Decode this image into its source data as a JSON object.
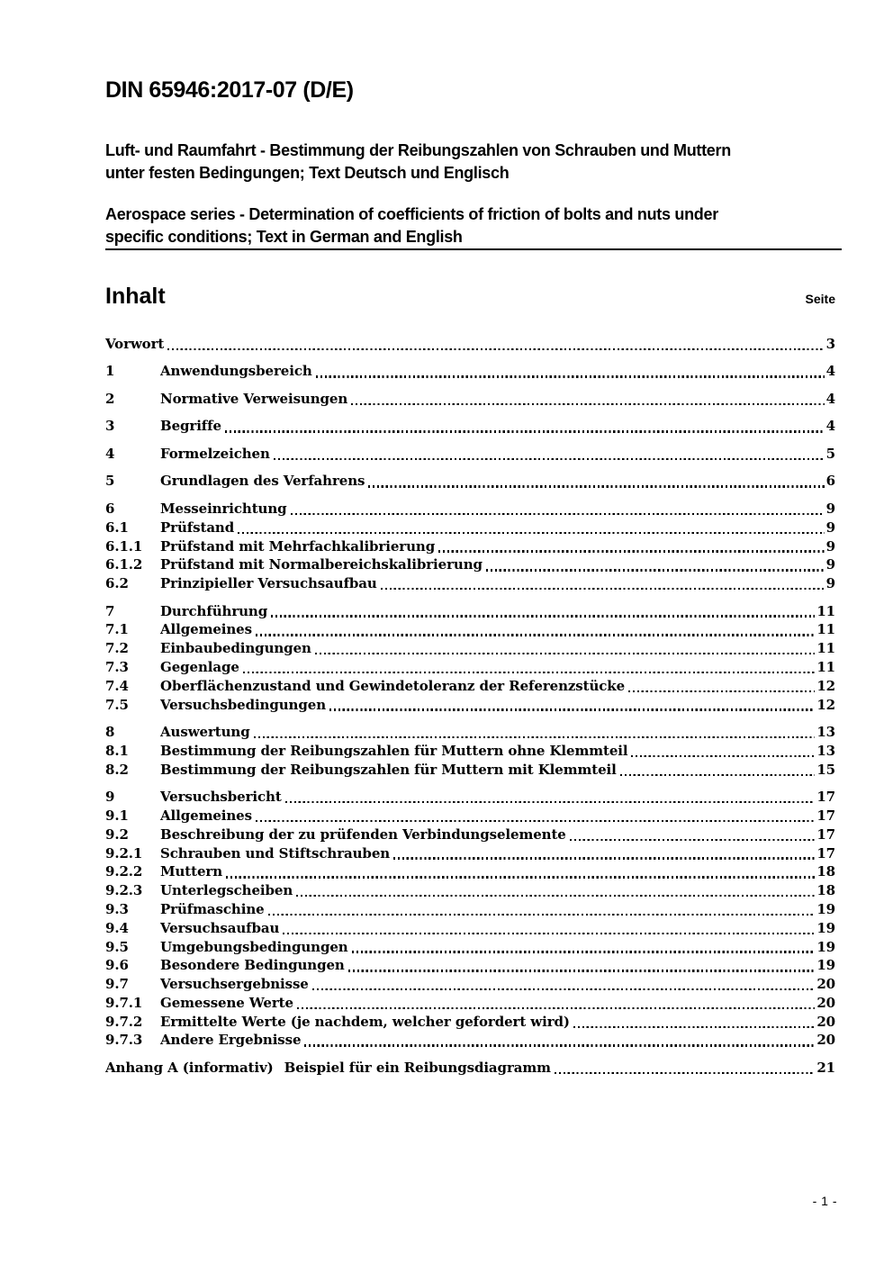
{
  "document": {
    "doc_number": "DIN 65946:2017-07 (D/E)",
    "title_de_lines": [
      "Luft- und Raumfahrt - Bestimmung der Reibungszahlen von Schrauben und Muttern",
      "unter festen Bedingungen; Text Deutsch und Englisch"
    ],
    "title_en_lines": [
      "Aerospace series - Determination of coefficients of friction of bolts and nuts under",
      "specific conditions; Text in German and English"
    ],
    "contents_heading": "Inhalt",
    "page_column_label": "Seite",
    "footer_page_number": "- 1 -"
  },
  "toc": {
    "entries": [
      {
        "num": "",
        "label": "Vorwort",
        "page": "3",
        "group": true
      },
      {
        "num": "1",
        "label": "Anwendungsbereich",
        "page": "4",
        "group": true
      },
      {
        "num": "2",
        "label": "Normative Verweisungen",
        "page": "4",
        "group": true
      },
      {
        "num": "3",
        "label": "Begriffe",
        "page": "4",
        "group": true
      },
      {
        "num": "4",
        "label": "Formelzeichen",
        "page": "5",
        "group": true
      },
      {
        "num": "5",
        "label": "Grundlagen des Verfahrens",
        "page": "6",
        "group": true
      },
      {
        "num": "6",
        "label": "Messeinrichtung",
        "page": "9",
        "group": true
      },
      {
        "num": "6.1",
        "label": "Prüfstand",
        "page": "9"
      },
      {
        "num": "6.1.1",
        "label": "Prüfstand mit Mehrfachkalibrierung",
        "page": "9"
      },
      {
        "num": "6.1.2",
        "label": "Prüfstand mit Normalbereichskalibrierung",
        "page": "9"
      },
      {
        "num": "6.2",
        "label": "Prinzipieller Versuchsaufbau",
        "page": "9"
      },
      {
        "num": "7",
        "label": "Durchführung",
        "page": "11",
        "group": true
      },
      {
        "num": "7.1",
        "label": "Allgemeines",
        "page": "11"
      },
      {
        "num": "7.2",
        "label": "Einbaubedingungen",
        "page": "11"
      },
      {
        "num": "7.3",
        "label": "Gegenlage",
        "page": "11"
      },
      {
        "num": "7.4",
        "label": "Oberflächenzustand und Gewindetoleranz der Referenzstücke",
        "page": "12"
      },
      {
        "num": "7.5",
        "label": "Versuchsbedingungen",
        "page": "12"
      },
      {
        "num": "8",
        "label": "Auswertung",
        "page": "13",
        "group": true
      },
      {
        "num": "8.1",
        "label": "Bestimmung der Reibungszahlen für Muttern ohne Klemmteil",
        "page": "13"
      },
      {
        "num": "8.2",
        "label": "Bestimmung der Reibungszahlen für Muttern mit Klemmteil",
        "page": "15"
      },
      {
        "num": "9",
        "label": "Versuchsbericht",
        "page": "17",
        "group": true
      },
      {
        "num": "9.1",
        "label": "Allgemeines",
        "page": "17"
      },
      {
        "num": "9.2",
        "label": "Beschreibung der zu prüfenden Verbindungselemente",
        "page": "17"
      },
      {
        "num": "9.2.1",
        "label": "Schrauben und Stiftschrauben",
        "page": "17"
      },
      {
        "num": "9.2.2",
        "label": "Muttern",
        "page": "18"
      },
      {
        "num": "9.2.3",
        "label": "Unterlegscheiben",
        "page": "18"
      },
      {
        "num": "9.3",
        "label": "Prüfmaschine",
        "page": "19"
      },
      {
        "num": "9.4",
        "label": "Versuchsaufbau",
        "page": "19"
      },
      {
        "num": "9.5",
        "label": "Umgebungsbedingungen",
        "page": "19"
      },
      {
        "num": "9.6",
        "label": "Besondere Bedingungen",
        "page": "19"
      },
      {
        "num": "9.7",
        "label": "Versuchsergebnisse",
        "page": "20"
      },
      {
        "num": "9.7.1",
        "label": "Gemessene Werte",
        "page": "20"
      },
      {
        "num": "9.7.2",
        "label": "Ermittelte Werte (je nachdem, welcher gefordert wird)",
        "page": "20"
      },
      {
        "num": "9.7.3",
        "label": "Andere Ergebnisse",
        "page": "20"
      },
      {
        "num": "",
        "label": "Anhang A (informativ)",
        "label2": "Beispiel für ein Reibungsdiagramm",
        "page": "21",
        "group": true
      }
    ]
  }
}
